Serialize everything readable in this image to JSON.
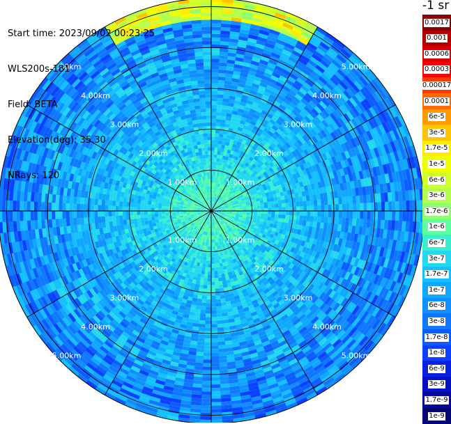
{
  "info": {
    "start_time": "Start time: 2023/09/02 00:23:25",
    "instrument": "WLS200s-181",
    "field": "Field: BETA",
    "elevation": "Elevation(deg): 35.30",
    "nrays": "NRays: 120"
  },
  "colorbar": {
    "title": "-1 sr",
    "labels": [
      "0.0017",
      "0.001",
      "0.0006",
      "0.0003",
      "0.00017",
      "0.0001",
      "6e-5",
      "3e-5",
      "1.7e-5",
      "1e-5",
      "6e-6",
      "3e-6",
      "1.7e-6",
      "1e-6",
      "6e-7",
      "3e-7",
      "1.7e-7",
      "1e-7",
      "6e-8",
      "3e-8",
      "1.7e-8",
      "1e-8",
      "6e-9",
      "3e-9",
      "1.7e-9",
      "1e-9"
    ],
    "colors": [
      "#8b0000",
      "#b00000",
      "#d80000",
      "#ff0000",
      "#ff3a00",
      "#ff6a00",
      "#ff9a00",
      "#ffc400",
      "#ffea00",
      "#f0ff00",
      "#d2ff2a",
      "#b4ff4c",
      "#8cff70",
      "#5cffa0",
      "#38f0d0",
      "#22d8f0",
      "#14c0ff",
      "#10a8ff",
      "#1090ff",
      "#1078ff",
      "#0c5cff",
      "#0a40ff",
      "#0820e0",
      "#0610c0",
      "#06089c",
      "#050576"
    ]
  },
  "chart_data": {
    "type": "heatmap",
    "projection": "polar PPI",
    "title": "",
    "field": "BETA",
    "units": "-1 sr",
    "elevation_deg": 35.3,
    "n_rays": 120,
    "range_rings_km": [
      1.0,
      2.0,
      3.0,
      4.0,
      5.0
    ],
    "ring_labels": [
      "1.00km",
      "2.00km",
      "3.00km",
      "4.00km",
      "5.00km"
    ],
    "max_range_km": 5.2,
    "azimuth_spokes_deg": [
      0,
      30,
      60,
      90,
      120,
      150,
      180,
      210,
      240,
      270,
      300,
      330
    ],
    "colorbar_ticks": [
      "1e-9",
      "1.7e-9",
      "3e-9",
      "6e-9",
      "1e-8",
      "1.7e-8",
      "3e-8",
      "6e-8",
      "1e-7",
      "1.7e-7",
      "3e-7",
      "6e-7",
      "1e-6",
      "1.7e-6",
      "3e-6",
      "6e-6",
      "1e-5",
      "1.7e-5",
      "3e-5",
      "6e-5",
      "0.0001",
      "0.00017",
      "0.0003",
      "0.0006",
      "0.001",
      "0.0017"
    ],
    "radial_profile": {
      "range_km": [
        0.0,
        0.5,
        1.0,
        1.5,
        2.0,
        2.5,
        3.0,
        3.5,
        4.0,
        4.5,
        5.0
      ],
      "typical_beta": [
        "6e-7",
        "1e-6",
        "6e-7",
        "3e-7",
        "3e-7",
        "1.7e-7",
        "1.7e-7",
        "1e-7",
        "1e-7",
        "6e-8",
        "6e-8"
      ]
    },
    "enhanced_sector": {
      "azimuth_deg": [
        330,
        30
      ],
      "range_km": [
        4.7,
        5.2
      ],
      "beta": "1e-5"
    }
  }
}
